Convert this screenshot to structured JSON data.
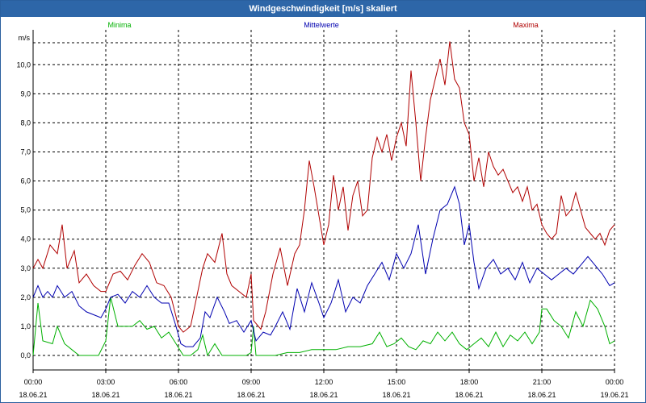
{
  "window": {
    "title": "Windgeschwindigkeit [m/s] skaliert"
  },
  "chart_data": {
    "type": "line",
    "title": "Windgeschwindigkeit [m/s] skaliert",
    "ylabel": "m/s",
    "xlabel": "",
    "ylim": [
      -0.5,
      11.2
    ],
    "xlim": [
      0,
      24
    ],
    "grid": true,
    "legend_placement": "top",
    "y_ticks": [
      {
        "value": 0,
        "label": "0,0"
      },
      {
        "value": 1,
        "label": "1,0"
      },
      {
        "value": 2,
        "label": "2,0"
      },
      {
        "value": 3,
        "label": "3,0"
      },
      {
        "value": 4,
        "label": "4,0"
      },
      {
        "value": 5,
        "label": "5,0"
      },
      {
        "value": 6,
        "label": "6,0"
      },
      {
        "value": 7,
        "label": "7,0"
      },
      {
        "value": 8,
        "label": "8,0"
      },
      {
        "value": 9,
        "label": "9,0"
      },
      {
        "value": 10,
        "label": "10,0"
      }
    ],
    "x_ticks": [
      {
        "value": 0,
        "time": "00:00",
        "date": "18.06.21"
      },
      {
        "value": 3,
        "time": "03:00",
        "date": "18.06.21"
      },
      {
        "value": 6,
        "time": "06:00",
        "date": "18.06.21"
      },
      {
        "value": 9,
        "time": "09:00",
        "date": "18.06.21"
      },
      {
        "value": 12,
        "time": "12:00",
        "date": "18.06.21"
      },
      {
        "value": 15,
        "time": "15:00",
        "date": "18.06.21"
      },
      {
        "value": 18,
        "time": "18:00",
        "date": "18.06.21"
      },
      {
        "value": 21,
        "time": "21:00",
        "date": "18.06.21"
      },
      {
        "value": 24,
        "time": "00:00",
        "date": "19.06.21"
      }
    ],
    "series": [
      {
        "name": "Minima",
        "color": "#00b000",
        "points": [
          [
            0,
            0
          ],
          [
            0.2,
            1.8
          ],
          [
            0.4,
            0.5
          ],
          [
            0.8,
            0.4
          ],
          [
            1,
            1
          ],
          [
            1.3,
            0.4
          ],
          [
            1.6,
            0.2
          ],
          [
            1.9,
            0
          ],
          [
            2.3,
            0
          ],
          [
            2.7,
            0
          ],
          [
            3,
            0.5
          ],
          [
            3.2,
            2
          ],
          [
            3.5,
            1
          ],
          [
            3.8,
            1
          ],
          [
            4.1,
            1
          ],
          [
            4.4,
            1.2
          ],
          [
            4.7,
            0.9
          ],
          [
            5,
            1
          ],
          [
            5.3,
            0.6
          ],
          [
            5.6,
            0.8
          ],
          [
            5.9,
            0.4
          ],
          [
            6.2,
            0
          ],
          [
            6.5,
            0
          ],
          [
            6.8,
            0.2
          ],
          [
            7,
            0.7
          ],
          [
            7.2,
            0
          ],
          [
            7.5,
            0.4
          ],
          [
            7.8,
            0
          ],
          [
            8,
            0
          ],
          [
            8.4,
            0
          ],
          [
            8.8,
            0
          ],
          [
            9,
            0.1
          ],
          [
            9.1,
            1
          ],
          [
            9.2,
            0
          ],
          [
            9.6,
            0
          ],
          [
            10,
            0
          ],
          [
            10.5,
            0.1
          ],
          [
            11,
            0.1
          ],
          [
            11.5,
            0.2
          ],
          [
            12,
            0.2
          ],
          [
            12.5,
            0.2
          ],
          [
            13,
            0.3
          ],
          [
            13.5,
            0.3
          ],
          [
            14,
            0.4
          ],
          [
            14.3,
            0.8
          ],
          [
            14.6,
            0.3
          ],
          [
            14.9,
            0.4
          ],
          [
            15.2,
            0.6
          ],
          [
            15.5,
            0.3
          ],
          [
            15.8,
            0.2
          ],
          [
            16.1,
            0.5
          ],
          [
            16.4,
            0.4
          ],
          [
            16.7,
            0.8
          ],
          [
            17,
            0.5
          ],
          [
            17.3,
            0.8
          ],
          [
            17.6,
            0.4
          ],
          [
            17.9,
            0.2
          ],
          [
            18.2,
            0.4
          ],
          [
            18.5,
            0.6
          ],
          [
            18.8,
            0.3
          ],
          [
            19.1,
            0.8
          ],
          [
            19.4,
            0.3
          ],
          [
            19.7,
            0.7
          ],
          [
            20,
            0.5
          ],
          [
            20.3,
            0.8
          ],
          [
            20.6,
            0.4
          ],
          [
            20.9,
            0.8
          ],
          [
            21,
            1.6
          ],
          [
            21.2,
            1.6
          ],
          [
            21.5,
            1.2
          ],
          [
            21.8,
            1
          ],
          [
            22.1,
            0.6
          ],
          [
            22.4,
            1.5
          ],
          [
            22.7,
            1
          ],
          [
            23,
            1.9
          ],
          [
            23.3,
            1.6
          ],
          [
            23.6,
            1
          ],
          [
            23.8,
            0.4
          ],
          [
            24,
            0.5
          ]
        ]
      },
      {
        "name": "Mittelwerte",
        "color": "#0000b0",
        "points": [
          [
            0,
            2
          ],
          [
            0.2,
            2.4
          ],
          [
            0.4,
            2
          ],
          [
            0.6,
            2.2
          ],
          [
            0.8,
            2
          ],
          [
            1,
            2.4
          ],
          [
            1.3,
            2
          ],
          [
            1.6,
            2.2
          ],
          [
            1.9,
            1.7
          ],
          [
            2.2,
            1.5
          ],
          [
            2.5,
            1.4
          ],
          [
            2.8,
            1.3
          ],
          [
            3,
            1.6
          ],
          [
            3.2,
            2
          ],
          [
            3.5,
            2.1
          ],
          [
            3.8,
            1.8
          ],
          [
            4.1,
            2.2
          ],
          [
            4.4,
            2
          ],
          [
            4.7,
            2.4
          ],
          [
            5,
            2
          ],
          [
            5.3,
            1.8
          ],
          [
            5.6,
            1.8
          ],
          [
            5.9,
            1
          ],
          [
            6.1,
            0.4
          ],
          [
            6.3,
            0.3
          ],
          [
            6.6,
            0.3
          ],
          [
            6.9,
            0.6
          ],
          [
            7.1,
            1.5
          ],
          [
            7.3,
            1.3
          ],
          [
            7.6,
            2
          ],
          [
            7.9,
            1.5
          ],
          [
            8.1,
            1.1
          ],
          [
            8.4,
            1.2
          ],
          [
            8.7,
            0.8
          ],
          [
            9,
            1.2
          ],
          [
            9.2,
            0.5
          ],
          [
            9.5,
            0.8
          ],
          [
            9.8,
            0.7
          ],
          [
            10,
            1
          ],
          [
            10.3,
            1.5
          ],
          [
            10.6,
            0.9
          ],
          [
            10.9,
            2.3
          ],
          [
            11.2,
            1.5
          ],
          [
            11.5,
            2.5
          ],
          [
            11.8,
            1.8
          ],
          [
            12,
            1.3
          ],
          [
            12.3,
            1.8
          ],
          [
            12.6,
            2.6
          ],
          [
            12.9,
            1.5
          ],
          [
            13.2,
            2
          ],
          [
            13.5,
            1.8
          ],
          [
            13.8,
            2.4
          ],
          [
            14.1,
            2.8
          ],
          [
            14.4,
            3.2
          ],
          [
            14.7,
            2.6
          ],
          [
            15,
            3.5
          ],
          [
            15.3,
            3
          ],
          [
            15.6,
            3.5
          ],
          [
            15.9,
            4.5
          ],
          [
            16.2,
            2.8
          ],
          [
            16.5,
            4
          ],
          [
            16.8,
            5
          ],
          [
            17.1,
            5.2
          ],
          [
            17.4,
            5.8
          ],
          [
            17.6,
            5.2
          ],
          [
            17.8,
            3.8
          ],
          [
            18,
            4.5
          ],
          [
            18.2,
            3.2
          ],
          [
            18.4,
            2.3
          ],
          [
            18.7,
            3
          ],
          [
            19,
            3.3
          ],
          [
            19.3,
            2.8
          ],
          [
            19.6,
            3
          ],
          [
            19.9,
            2.6
          ],
          [
            20.2,
            3.2
          ],
          [
            20.5,
            2.5
          ],
          [
            20.8,
            3
          ],
          [
            21.1,
            2.8
          ],
          [
            21.4,
            2.6
          ],
          [
            21.7,
            2.8
          ],
          [
            22,
            3
          ],
          [
            22.3,
            2.8
          ],
          [
            22.6,
            3.1
          ],
          [
            22.9,
            3.4
          ],
          [
            23.2,
            3.1
          ],
          [
            23.5,
            2.8
          ],
          [
            23.8,
            2.4
          ],
          [
            24,
            2.5
          ]
        ]
      },
      {
        "name": "Maxima",
        "color": "#b00000",
        "points": [
          [
            0,
            3
          ],
          [
            0.2,
            3.3
          ],
          [
            0.4,
            3
          ],
          [
            0.7,
            3.8
          ],
          [
            1,
            3.5
          ],
          [
            1.2,
            4.5
          ],
          [
            1.4,
            3
          ],
          [
            1.7,
            3.6
          ],
          [
            1.9,
            2.5
          ],
          [
            2.2,
            2.8
          ],
          [
            2.5,
            2.4
          ],
          [
            2.8,
            2.2
          ],
          [
            3,
            2.2
          ],
          [
            3.3,
            2.8
          ],
          [
            3.6,
            2.9
          ],
          [
            3.9,
            2.6
          ],
          [
            4.2,
            3.1
          ],
          [
            4.5,
            3.5
          ],
          [
            4.8,
            3.2
          ],
          [
            5.1,
            2.5
          ],
          [
            5.4,
            2.4
          ],
          [
            5.7,
            2
          ],
          [
            6,
            1
          ],
          [
            6.2,
            0.8
          ],
          [
            6.5,
            1
          ],
          [
            6.8,
            2.2
          ],
          [
            7,
            3
          ],
          [
            7.2,
            3.5
          ],
          [
            7.5,
            3.2
          ],
          [
            7.8,
            4.2
          ],
          [
            8,
            2.8
          ],
          [
            8.2,
            2.4
          ],
          [
            8.5,
            2.2
          ],
          [
            8.8,
            2
          ],
          [
            9,
            2.8
          ],
          [
            9.1,
            1.2
          ],
          [
            9.4,
            0.9
          ],
          [
            9.6,
            1.5
          ],
          [
            9.9,
            2.8
          ],
          [
            10.2,
            3.7
          ],
          [
            10.5,
            2.4
          ],
          [
            10.8,
            3.5
          ],
          [
            11,
            3.8
          ],
          [
            11.2,
            5
          ],
          [
            11.4,
            6.7
          ],
          [
            11.6,
            5.8
          ],
          [
            11.8,
            4.8
          ],
          [
            12,
            3.8
          ],
          [
            12.2,
            4.5
          ],
          [
            12.4,
            6.2
          ],
          [
            12.6,
            5
          ],
          [
            12.8,
            5.8
          ],
          [
            13,
            4.3
          ],
          [
            13.2,
            5.5
          ],
          [
            13.4,
            6
          ],
          [
            13.6,
            4.8
          ],
          [
            13.8,
            5
          ],
          [
            14,
            6.8
          ],
          [
            14.2,
            7.5
          ],
          [
            14.4,
            7
          ],
          [
            14.6,
            7.6
          ],
          [
            14.8,
            6.7
          ],
          [
            15,
            7.5
          ],
          [
            15.2,
            8
          ],
          [
            15.4,
            7.2
          ],
          [
            15.6,
            9.8
          ],
          [
            15.8,
            8
          ],
          [
            16,
            6
          ],
          [
            16.2,
            7.5
          ],
          [
            16.4,
            8.8
          ],
          [
            16.6,
            9.5
          ],
          [
            16.8,
            10.2
          ],
          [
            17,
            9.3
          ],
          [
            17.2,
            10.8
          ],
          [
            17.4,
            9.5
          ],
          [
            17.6,
            9.2
          ],
          [
            17.8,
            8
          ],
          [
            18,
            7.6
          ],
          [
            18.2,
            6
          ],
          [
            18.4,
            6.8
          ],
          [
            18.6,
            5.8
          ],
          [
            18.8,
            7
          ],
          [
            19,
            6.5
          ],
          [
            19.2,
            6.2
          ],
          [
            19.4,
            6.4
          ],
          [
            19.6,
            6
          ],
          [
            19.8,
            5.6
          ],
          [
            20,
            5.8
          ],
          [
            20.2,
            5.3
          ],
          [
            20.4,
            5.8
          ],
          [
            20.6,
            5
          ],
          [
            20.8,
            5.2
          ],
          [
            21,
            4.5
          ],
          [
            21.2,
            4.2
          ],
          [
            21.4,
            4
          ],
          [
            21.6,
            4.2
          ],
          [
            21.8,
            5.5
          ],
          [
            22,
            4.8
          ],
          [
            22.2,
            5
          ],
          [
            22.4,
            5.6
          ],
          [
            22.6,
            5
          ],
          [
            22.8,
            4.4
          ],
          [
            23,
            4.2
          ],
          [
            23.2,
            4
          ],
          [
            23.4,
            4.2
          ],
          [
            23.6,
            3.8
          ],
          [
            23.8,
            4.3
          ],
          [
            24,
            4.5
          ]
        ]
      }
    ]
  }
}
